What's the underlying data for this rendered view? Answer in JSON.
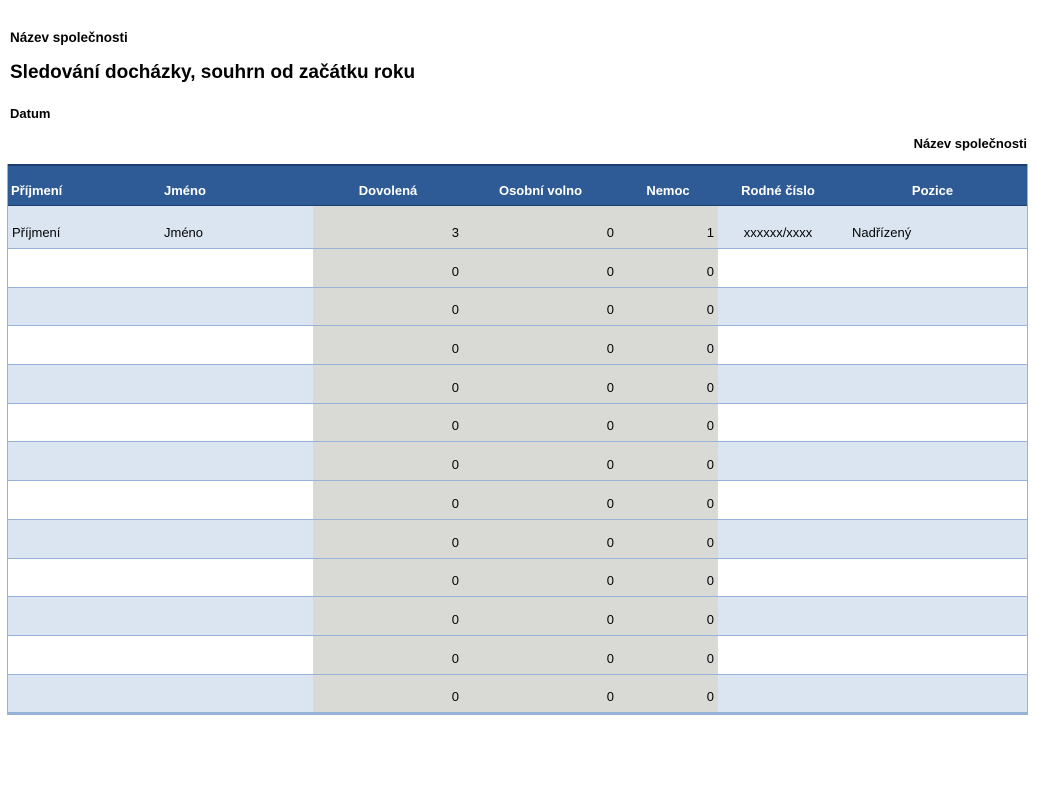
{
  "header": {
    "company": "Název společnosti",
    "title": "Sledování docházky, souhrn od začátku roku",
    "date_label": "Datum",
    "company_right": "Název společnosti"
  },
  "table": {
    "columns": [
      {
        "key": "prijmeni",
        "label": "Příjmení",
        "align": "left"
      },
      {
        "key": "jmeno",
        "label": "Jméno",
        "align": "left"
      },
      {
        "key": "dovolena",
        "label": "Dovolená",
        "align": "right"
      },
      {
        "key": "osobni_volno",
        "label": "Osobní volno",
        "align": "right"
      },
      {
        "key": "nemoc",
        "label": "Nemoc",
        "align": "right"
      },
      {
        "key": "rodne_cislo",
        "label": "Rodné číslo",
        "align": "center"
      },
      {
        "key": "pozice",
        "label": "Pozice",
        "align": "left"
      }
    ],
    "rows": [
      {
        "prijmeni": "Příjmení",
        "jmeno": "Jméno",
        "dovolena": "3",
        "osobni_volno": "0",
        "nemoc": "1",
        "rodne_cislo": "xxxxxx/xxxx",
        "pozice": "Nadřízený"
      },
      {
        "prijmeni": "",
        "jmeno": "",
        "dovolena": "0",
        "osobni_volno": "0",
        "nemoc": "0",
        "rodne_cislo": "",
        "pozice": ""
      },
      {
        "prijmeni": "",
        "jmeno": "",
        "dovolena": "0",
        "osobni_volno": "0",
        "nemoc": "0",
        "rodne_cislo": "",
        "pozice": ""
      },
      {
        "prijmeni": "",
        "jmeno": "",
        "dovolena": "0",
        "osobni_volno": "0",
        "nemoc": "0",
        "rodne_cislo": "",
        "pozice": ""
      },
      {
        "prijmeni": "",
        "jmeno": "",
        "dovolena": "0",
        "osobni_volno": "0",
        "nemoc": "0",
        "rodne_cislo": "",
        "pozice": ""
      },
      {
        "prijmeni": "",
        "jmeno": "",
        "dovolena": "0",
        "osobni_volno": "0",
        "nemoc": "0",
        "rodne_cislo": "",
        "pozice": ""
      },
      {
        "prijmeni": "",
        "jmeno": "",
        "dovolena": "0",
        "osobni_volno": "0",
        "nemoc": "0",
        "rodne_cislo": "",
        "pozice": ""
      },
      {
        "prijmeni": "",
        "jmeno": "",
        "dovolena": "0",
        "osobni_volno": "0",
        "nemoc": "0",
        "rodne_cislo": "",
        "pozice": ""
      },
      {
        "prijmeni": "",
        "jmeno": "",
        "dovolena": "0",
        "osobni_volno": "0",
        "nemoc": "0",
        "rodne_cislo": "",
        "pozice": ""
      },
      {
        "prijmeni": "",
        "jmeno": "",
        "dovolena": "0",
        "osobni_volno": "0",
        "nemoc": "0",
        "rodne_cislo": "",
        "pozice": ""
      },
      {
        "prijmeni": "",
        "jmeno": "",
        "dovolena": "0",
        "osobni_volno": "0",
        "nemoc": "0",
        "rodne_cislo": "",
        "pozice": ""
      },
      {
        "prijmeni": "",
        "jmeno": "",
        "dovolena": "0",
        "osobni_volno": "0",
        "nemoc": "0",
        "rodne_cislo": "",
        "pozice": ""
      },
      {
        "prijmeni": "",
        "jmeno": "",
        "dovolena": "0",
        "osobni_volno": "0",
        "nemoc": "0",
        "rodne_cislo": "",
        "pozice": ""
      }
    ]
  },
  "colors": {
    "header_bg": "#2E5B96",
    "header_top_border": "#1C3E6E",
    "header_text": "#FFFFFF",
    "row_alt_bg": "#DBE5F1",
    "row_bg": "#FFFFFF",
    "gray_band_bg": "#D9D9D6",
    "grid_line": "#96B2D6",
    "text": "#000000"
  }
}
